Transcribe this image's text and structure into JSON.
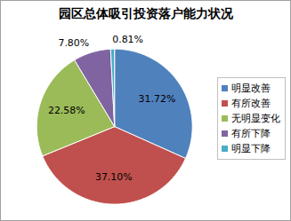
{
  "chart_data": {
    "type": "pie",
    "title": "园区总体吸引投资落户能力状况",
    "categories": [
      "明显改善",
      "有所改善",
      "无明显变化",
      "有所下降",
      "明显下降"
    ],
    "values": [
      31.72,
      37.1,
      22.58,
      7.8,
      0.81
    ],
    "value_labels": [
      "31.72%",
      "37.10%",
      "22.58%",
      "7.80%",
      "0.81%"
    ],
    "colors": [
      "#4f81bd",
      "#c0504d",
      "#9bbb59",
      "#8064a2",
      "#4bacc6"
    ],
    "data_labels": true,
    "legend": "right"
  }
}
